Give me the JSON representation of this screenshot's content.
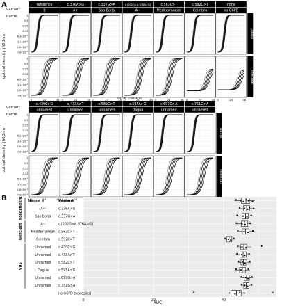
{
  "panel_a": {
    "label": "A",
    "row_header_top": "variant",
    "row_header_bottom": "name",
    "ylabel": "optical density (600nm)",
    "xlabel": "time (hours)",
    "x_ticks": [
      "0",
      "24",
      "48"
    ],
    "y_ticks": [
      "1",
      "0.5",
      "0.25",
      "0.13",
      "6.3x10⁻²",
      "3.1x10⁻²",
      "1.6x10⁻²",
      "7.8x10⁻³"
    ],
    "strip_labels": [
      "control",
      "selection"
    ],
    "top_group": [
      {
        "variant": "reference",
        "name": "B"
      },
      {
        "variant": "c.376A>G",
        "name": "A+"
      },
      {
        "variant": "c.337G>A",
        "name": "Sao Borja"
      },
      {
        "variant": "c.[202G>A;376A>G]",
        "name": "A−"
      },
      {
        "variant": "c.563C>T",
        "name": "Mediterranean"
      },
      {
        "variant": "c.592C>T",
        "name": "Coimbra"
      },
      {
        "variant": "none",
        "name": "no G6PD"
      }
    ],
    "bottom_group": [
      {
        "variant": "c.430C>G",
        "name": "unnamed"
      },
      {
        "variant": "c.433A>T",
        "name": "unnamed"
      },
      {
        "variant": "c.582C>T",
        "name": "unnamed"
      },
      {
        "variant": "c.595A>G",
        "name": "Dagua"
      },
      {
        "variant": "c.697G>A",
        "name": "unnamed"
      },
      {
        "variant": "c.751G>A",
        "name": "unnamed"
      }
    ]
  },
  "panel_b": {
    "label": "B",
    "col_name": "Name",
    "col_variant": "Variant",
    "xlabel": "AUC",
    "x_ticks": [
      "0",
      "20",
      "40"
    ],
    "star": "*",
    "groups": [
      {
        "label": "Nondeficient",
        "from": 0,
        "to": 2
      },
      {
        "label": "Deficient",
        "from": 3,
        "to": 5
      },
      {
        "label": "VUS",
        "from": 6,
        "to": 11
      }
    ]
  },
  "chart_data": [
    {
      "type": "line",
      "title": "",
      "xlabel": "time (hours)",
      "ylabel": "optical density (600nm)",
      "xlim": [
        0,
        48
      ],
      "ylim_log2": [
        "7.8x10⁻³",
        "1"
      ],
      "y_scale": "log2",
      "grid": true,
      "facets_rows": [
        "control",
        "selection"
      ],
      "note": "growth curves per variant; control curves saturate near OD 1 by ~10-15 h; selection curves rise later (~15-35 h)"
    },
    {
      "type": "boxplot",
      "xlabel": "AUC",
      "xlim": [
        0,
        55
      ],
      "grid": true,
      "rows": [
        {
          "name": "B",
          "variant": "reference",
          "q1": 45.0,
          "median": 46.3,
          "q3": 47.3,
          "whisker_low": 43.0,
          "whisker_high": 48.8,
          "points": [
            43.5,
            44.8,
            45.6,
            46.4,
            47.0,
            48.2
          ]
        },
        {
          "name": "A+",
          "variant": "c.376A>G",
          "q1": 45.6,
          "median": 46.5,
          "q3": 47.4,
          "whisker_low": 44.2,
          "whisker_high": 48.8,
          "points": [
            44.5,
            45.9,
            46.8,
            47.3,
            48.5
          ]
        },
        {
          "name": "Sao Borja",
          "variant": "c.337G>A",
          "q1": 45.2,
          "median": 46.2,
          "q3": 47.0,
          "whisker_low": 43.6,
          "whisker_high": 48.4,
          "points": [
            43.8,
            45.5,
            46.6,
            47.8
          ]
        },
        {
          "name": "A−",
          "variant": "c.[202G>A;376A>G]",
          "q1": 45.0,
          "median": 45.9,
          "q3": 46.8,
          "whisker_low": 43.4,
          "whisker_high": 48.0,
          "points": [
            43.6,
            45.2,
            46.1,
            47.5
          ]
        },
        {
          "name": "Mediterranean",
          "variant": "c.563C>T",
          "q1": 45.3,
          "median": 46.2,
          "q3": 47.2,
          "whisker_low": 43.8,
          "whisker_high": 48.6,
          "points": [
            44.0,
            45.8,
            46.9,
            48.3
          ]
        },
        {
          "name": "Coimbra",
          "variant": "c.592C>T",
          "q1": 40.9,
          "median": 41.5,
          "q3": 42.3,
          "whisker_low": 40.2,
          "whisker_high": 43.2,
          "points": [
            40.4,
            41.3,
            42.0,
            42.9
          ]
        },
        {
          "name": "Unnamed",
          "variant": "c.430C>G",
          "q1": 44.8,
          "median": 45.7,
          "q3": 46.5,
          "whisker_low": 43.6,
          "whisker_high": 47.8,
          "points": [
            44.0,
            45.2,
            46.3,
            50.8
          ]
        },
        {
          "name": "Unnamed",
          "variant": "c.433A>T",
          "q1": 44.6,
          "median": 45.5,
          "q3": 46.4,
          "whisker_low": 43.4,
          "whisker_high": 47.6,
          "points": [
            43.8,
            45.1,
            46.0,
            47.2
          ]
        },
        {
          "name": "Unnamed",
          "variant": "c.582C>T",
          "q1": 44.9,
          "median": 45.6,
          "q3": 46.5,
          "whisker_low": 43.8,
          "whisker_high": 47.8,
          "points": [
            44.2,
            45.3,
            46.1,
            47.4
          ]
        },
        {
          "name": "Dagua",
          "variant": "c.595A>G",
          "q1": 44.5,
          "median": 45.3,
          "q3": 46.2,
          "whisker_low": 43.2,
          "whisker_high": 47.4,
          "points": [
            43.5,
            44.9,
            45.8,
            47.0
          ]
        },
        {
          "name": "Unnamed",
          "variant": "c.697G>A",
          "q1": 45.8,
          "median": 46.5,
          "q3": 47.3,
          "whisker_low": 44.8,
          "whisker_high": 48.3,
          "points": [
            45.0,
            46.2,
            46.9,
            48.0
          ]
        },
        {
          "name": "Unnamed",
          "variant": "c.751G>A",
          "q1": 45.7,
          "median": 46.4,
          "q3": 47.2,
          "whisker_low": 44.8,
          "whisker_high": 48.2,
          "points": [
            45.1,
            46.0,
            46.8,
            47.9
          ]
        },
        {
          "name": "",
          "variant": "no G6PD expressed",
          "q1": 42.0,
          "median": 43.6,
          "q3": 45.0,
          "whisker_low": 41.2,
          "whisker_high": 46.2,
          "points": [
            31.5,
            41.5,
            43.2,
            44.6,
            45.8
          ]
        }
      ]
    }
  ]
}
